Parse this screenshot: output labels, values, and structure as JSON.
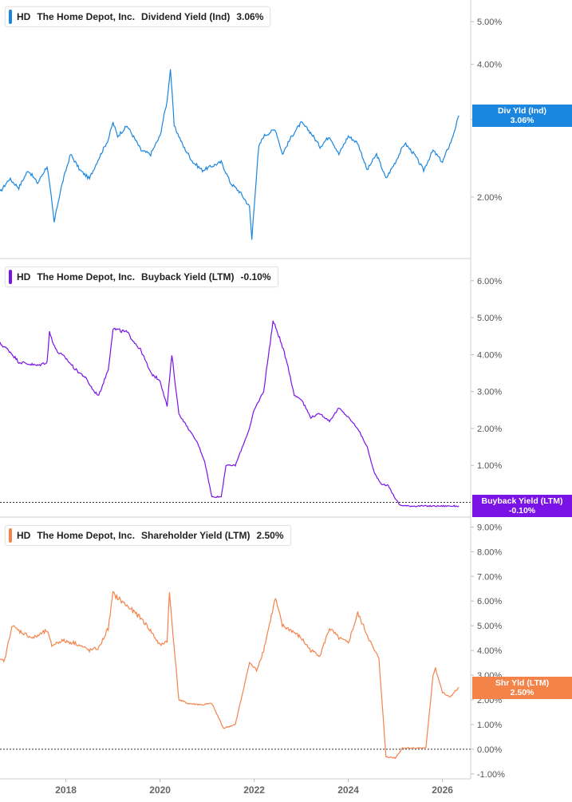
{
  "colors": {
    "panel1": "#1a86e0",
    "panel2": "#7a14e6",
    "panel3": "#f4834a"
  },
  "panels": [
    {
      "ticker": "HD",
      "company": "The Home Depot, Inc.",
      "metric": "Dividend Yield (Ind)",
      "value": "3.06%",
      "tag_label": "Div Yld (Ind)",
      "tag_value": "3.06%"
    },
    {
      "ticker": "HD",
      "company": "The Home Depot, Inc.",
      "metric": "Buyback Yield (LTM)",
      "value": "-0.10%",
      "tag_label": "Buyback Yield (LTM)",
      "tag_value": "-0.10%"
    },
    {
      "ticker": "HD",
      "company": "The Home Depot, Inc.",
      "metric": "Shareholder Yield (LTM)",
      "value": "2.50%",
      "tag_label": "Shr Yld (LTM)",
      "tag_value": "2.50%"
    }
  ],
  "chart_data": [
    {
      "type": "line",
      "title": "HD The Home Depot, Inc. Dividend Yield (Ind) 3.06%",
      "y_scale": "log",
      "yticks": [
        2,
        3,
        4,
        5
      ],
      "ytick_labels": [
        "2.00%",
        "3.00%",
        "4.00%",
        "5.00%"
      ],
      "ylim": [
        1.45,
        5.6
      ],
      "xlim": [
        2016.6,
        2026.6
      ],
      "x": [
        2016.6,
        2016.8,
        2017.0,
        2017.2,
        2017.4,
        2017.6,
        2017.75,
        2017.9,
        2018.1,
        2018.3,
        2018.5,
        2018.7,
        2018.9,
        2019.0,
        2019.1,
        2019.3,
        2019.6,
        2019.8,
        2020.0,
        2020.15,
        2020.22,
        2020.3,
        2020.5,
        2020.7,
        2020.9,
        2021.1,
        2021.3,
        2021.5,
        2021.7,
        2021.9,
        2021.95,
        2022.0,
        2022.1,
        2022.2,
        2022.45,
        2022.6,
        2022.8,
        2023.0,
        2023.2,
        2023.4,
        2023.6,
        2023.8,
        2024.0,
        2024.2,
        2024.4,
        2024.6,
        2024.8,
        2025.0,
        2025.2,
        2025.4,
        2025.6,
        2025.8,
        2026.0,
        2026.2,
        2026.35
      ],
      "y": [
        2.05,
        2.2,
        2.1,
        2.3,
        2.15,
        2.35,
        1.75,
        2.1,
        2.5,
        2.3,
        2.2,
        2.45,
        2.7,
        2.95,
        2.75,
        2.9,
        2.55,
        2.5,
        2.75,
        3.3,
        3.9,
        2.9,
        2.6,
        2.4,
        2.3,
        2.35,
        2.4,
        2.15,
        2.05,
        1.9,
        1.6,
        1.9,
        2.6,
        2.75,
        2.85,
        2.5,
        2.75,
        2.95,
        2.8,
        2.6,
        2.75,
        2.5,
        2.75,
        2.65,
        2.3,
        2.5,
        2.2,
        2.4,
        2.65,
        2.5,
        2.3,
        2.55,
        2.4,
        2.7,
        3.06
      ]
    },
    {
      "type": "line",
      "title": "HD The Home Depot, Inc. Buyback Yield (LTM) -0.10%",
      "yticks": [
        1,
        2,
        3,
        4,
        5,
        6
      ],
      "ytick_labels": [
        "1.00%",
        "2.00%",
        "3.00%",
        "4.00%",
        "5.00%",
        "6.00%"
      ],
      "ylim": [
        -0.4,
        6.6
      ],
      "reference_line": 0,
      "xlim": [
        2016.6,
        2026.6
      ],
      "x": [
        2016.6,
        2016.8,
        2017.0,
        2017.2,
        2017.4,
        2017.6,
        2017.65,
        2017.8,
        2018.0,
        2018.2,
        2018.4,
        2018.6,
        2018.7,
        2018.9,
        2019.0,
        2019.3,
        2019.6,
        2019.8,
        2020.0,
        2020.15,
        2020.25,
        2020.4,
        2020.6,
        2020.8,
        2020.95,
        2021.1,
        2021.3,
        2021.4,
        2021.6,
        2021.9,
        2022.0,
        2022.2,
        2022.4,
        2022.5,
        2022.7,
        2022.85,
        2023.0,
        2023.2,
        2023.4,
        2023.6,
        2023.8,
        2024.0,
        2024.2,
        2024.4,
        2024.55,
        2024.7,
        2024.85,
        2025.0,
        2025.1,
        2025.3,
        2025.6,
        2026.0,
        2026.35
      ],
      "y": [
        4.3,
        4.1,
        3.8,
        3.75,
        3.7,
        3.8,
        4.6,
        4.1,
        3.9,
        3.6,
        3.4,
        3.0,
        2.9,
        3.6,
        4.7,
        4.6,
        4.1,
        3.5,
        3.3,
        2.6,
        4.0,
        2.4,
        2.0,
        1.6,
        1.1,
        0.15,
        0.15,
        1.0,
        1.0,
        2.0,
        2.5,
        3.0,
        4.9,
        4.6,
        3.8,
        2.9,
        2.8,
        2.3,
        2.4,
        2.2,
        2.55,
        2.3,
        2.0,
        1.5,
        0.8,
        0.5,
        0.45,
        0.1,
        -0.08,
        -0.1,
        -0.1,
        -0.1,
        -0.1
      ]
    },
    {
      "type": "line",
      "title": "HD The Home Depot, Inc. Shareholder Yield (LTM) 2.50%",
      "yticks": [
        -1,
        0,
        1,
        2,
        3,
        4,
        5,
        6,
        7,
        8,
        9
      ],
      "ytick_labels": [
        "-1.00%",
        "0.00%",
        "1.00%",
        "2.00%",
        "3.00%",
        "4.00%",
        "5.00%",
        "6.00%",
        "7.00%",
        "8.00%",
        "9.00%"
      ],
      "ylim": [
        -1.2,
        9.4
      ],
      "reference_line": 0,
      "xlim": [
        2016.6,
        2026.6
      ],
      "x": [
        2016.6,
        2016.7,
        2016.85,
        2017.0,
        2017.3,
        2017.6,
        2017.7,
        2017.9,
        2018.2,
        2018.5,
        2018.7,
        2018.9,
        2019.0,
        2019.3,
        2019.6,
        2019.8,
        2020.0,
        2020.15,
        2020.2,
        2020.4,
        2020.6,
        2020.9,
        2021.1,
        2021.35,
        2021.6,
        2021.9,
        2022.05,
        2022.2,
        2022.45,
        2022.6,
        2022.8,
        2023.0,
        2023.2,
        2023.4,
        2023.6,
        2023.8,
        2024.0,
        2024.2,
        2024.55,
        2024.65,
        2024.8,
        2025.0,
        2025.15,
        2025.4,
        2025.65,
        2025.8,
        2025.85,
        2026.0,
        2026.15,
        2026.35
      ],
      "y": [
        3.6,
        3.6,
        5.0,
        4.8,
        4.5,
        4.8,
        4.2,
        4.4,
        4.3,
        4.0,
        4.1,
        4.9,
        6.3,
        5.8,
        5.3,
        4.8,
        4.2,
        4.4,
        6.3,
        2.0,
        1.85,
        1.8,
        1.85,
        0.85,
        1.0,
        3.5,
        3.2,
        4.0,
        6.1,
        5.0,
        4.8,
        4.5,
        4.0,
        3.8,
        4.9,
        4.5,
        4.3,
        5.5,
        4.0,
        3.7,
        -0.3,
        -0.35,
        0.05,
        0.05,
        0.05,
        3.0,
        3.3,
        2.3,
        2.1,
        2.5
      ]
    }
  ],
  "x_axis": {
    "ticks": [
      2018,
      2020,
      2022,
      2024,
      2026
    ],
    "labels": [
      "2018",
      "2020",
      "2022",
      "2024",
      "2026"
    ]
  }
}
